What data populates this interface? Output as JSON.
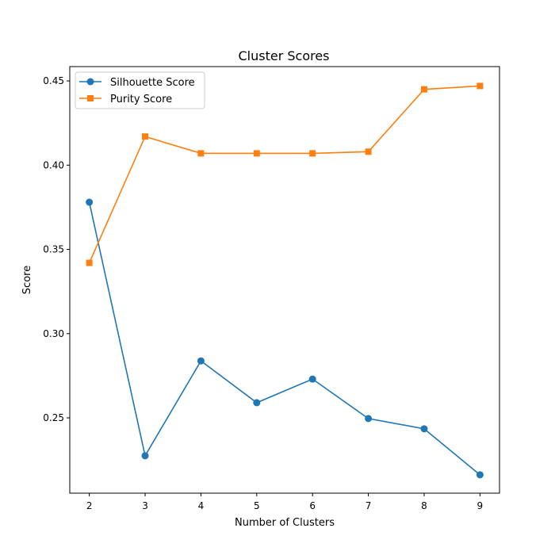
{
  "chart_data": {
    "type": "line",
    "title": "Cluster Scores",
    "xlabel": "Number of Clusters",
    "ylabel": "Score",
    "x": [
      2,
      3,
      4,
      5,
      6,
      7,
      8,
      9
    ],
    "xlim": [
      1.65,
      9.35
    ],
    "ylim": [
      0.2053,
      0.4585
    ],
    "xticks": [
      "2",
      "3",
      "4",
      "5",
      "6",
      "7",
      "8",
      "9"
    ],
    "yticks": [
      {
        "value": 0.25,
        "label": "0.25"
      },
      {
        "value": 0.3,
        "label": "0.30"
      },
      {
        "value": 0.35,
        "label": "0.35"
      },
      {
        "value": 0.4,
        "label": "0.40"
      },
      {
        "value": 0.45,
        "label": "0.45"
      }
    ],
    "grid": false,
    "legend_position": "top-left",
    "series": [
      {
        "name": "Silhouette Score",
        "color": "#1f77b4",
        "marker": "circle",
        "values": [
          0.378,
          0.2275,
          0.2838,
          0.259,
          0.273,
          0.2496,
          0.2435,
          0.2162
        ]
      },
      {
        "name": "Purity Score",
        "color": "#ff7f0e",
        "marker": "square",
        "values": [
          0.342,
          0.417,
          0.407,
          0.407,
          0.407,
          0.408,
          0.445,
          0.447
        ]
      }
    ]
  }
}
